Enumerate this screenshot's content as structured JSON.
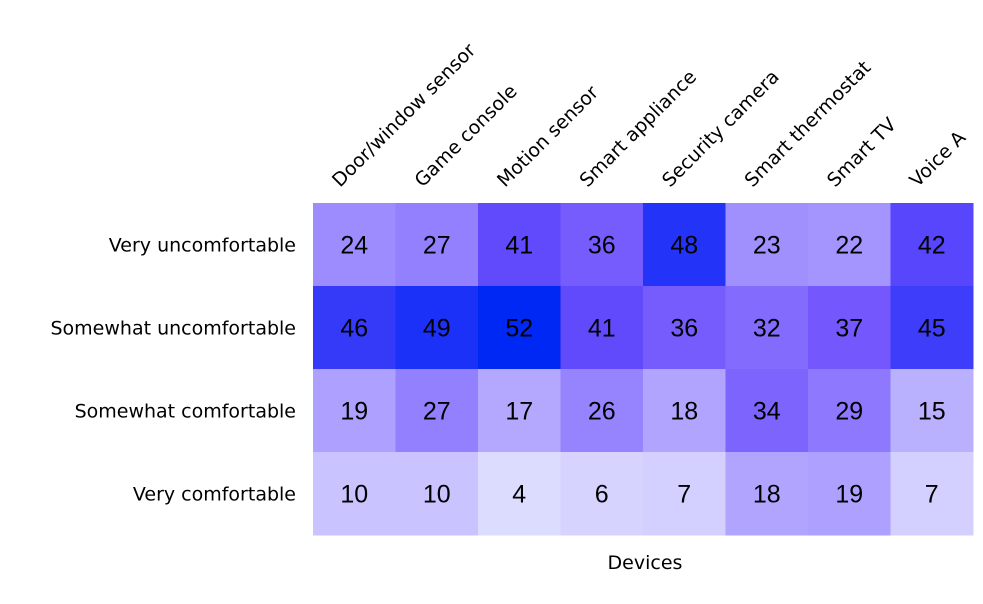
{
  "chart_data": {
    "type": "heatmap",
    "title": "",
    "xlabel": "Devices",
    "ylabel": "",
    "columns": [
      "Door/window sensor",
      "Game console",
      "Motion sensor",
      "Smart appliance",
      "Security camera",
      "Smart thermostat",
      "Smart TV",
      "Voice A"
    ],
    "rows": [
      "Very uncomfortable",
      "Somewhat uncomfortable",
      "Somewhat comfortable",
      "Very comfortable"
    ],
    "values": [
      [
        24,
        27,
        41,
        36,
        48,
        23,
        22,
        42
      ],
      [
        46,
        49,
        52,
        41,
        36,
        32,
        37,
        45
      ],
      [
        19,
        27,
        17,
        26,
        18,
        34,
        29,
        15
      ],
      [
        10,
        10,
        4,
        6,
        7,
        18,
        19,
        7
      ]
    ],
    "color_scale": {
      "low": "#dcdcff",
      "mid": "#6a4cfd",
      "high": "#0028f5"
    },
    "grid": false,
    "legend": "none"
  }
}
